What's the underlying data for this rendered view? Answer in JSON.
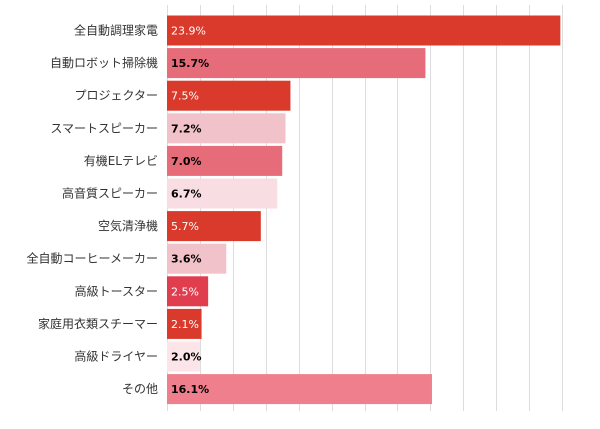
{
  "chart_data": {
    "type": "bar",
    "orientation": "horizontal",
    "categories": [
      "全自動調理家電",
      "自動ロボット掃除機",
      "プロジェクター",
      "スマートスピーカー",
      "有機ELテレビ",
      "高音質スピーカー",
      "空気清浄機",
      "全自動コーヒーメーカー",
      "高級トースター",
      "家庭用衣類スチーマー",
      "高級ドライヤー",
      "その他"
    ],
    "values": [
      23.9,
      15.7,
      7.5,
      7.2,
      7.0,
      6.7,
      5.7,
      3.6,
      2.5,
      2.1,
      2.0,
      16.1
    ],
    "value_labels": [
      "23.9%",
      "15.7%",
      "7.5%",
      "7.2%",
      "7.0%",
      "6.7%",
      "5.7%",
      "3.6%",
      "2.5%",
      "2.1%",
      "2.0%",
      "16.1%"
    ],
    "bar_colors": [
      "#d93a2b",
      "#e66c7a",
      "#d93a2b",
      "#f2c2ca",
      "#e66c7a",
      "#f8dde2",
      "#d93a2b",
      "#f2c2ca",
      "#e03e4e",
      "#d93a2b",
      "#fbe5e9",
      "#ef7f8c"
    ],
    "label_colors": [
      "#ffffff",
      "#000000",
      "#ffffff",
      "#000000",
      "#000000",
      "#000000",
      "#ffffff",
      "#000000",
      "#ffffff",
      "#ffffff",
      "#000000",
      "#000000"
    ],
    "xlim": [
      0,
      24
    ],
    "grid": true,
    "title": "",
    "xlabel": "",
    "ylabel": ""
  }
}
